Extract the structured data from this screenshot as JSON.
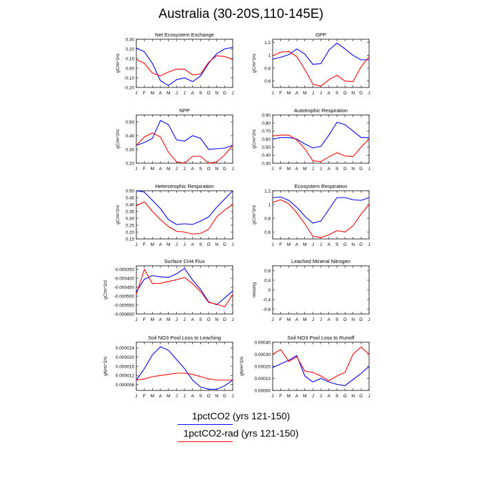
{
  "title": "Australia (30-20S,110-145E)",
  "legend": [
    {
      "label": "1pctCO2 (yrs 121-150)",
      "color": "#0000ff"
    },
    {
      "label": "1pctCO2-rad (yrs 121-150)",
      "color": "#ff0000"
    }
  ],
  "chart_data": [
    {
      "type": "line",
      "title": "Net Ecosystem Exchange",
      "ylabel": "gC/m^2/d",
      "categories": [
        "J",
        "F",
        "M",
        "A",
        "M",
        "J",
        "J",
        "A",
        "S",
        "O",
        "N",
        "D",
        "J"
      ],
      "ylim": [
        -0.2,
        0.3
      ],
      "yticks": [
        "0.30",
        "0.20",
        "0.10",
        "0.00",
        "-0.10",
        "-0.20"
      ],
      "grid": false,
      "series": [
        {
          "color": "#0000ff",
          "values": [
            0.21,
            0.17,
            0.05,
            -0.13,
            -0.18,
            -0.12,
            -0.1,
            -0.14,
            -0.08,
            0.05,
            0.15,
            0.2,
            0.215
          ]
        },
        {
          "color": "#ff0000",
          "values": [
            0.09,
            0.05,
            -0.05,
            -0.08,
            -0.04,
            -0.01,
            -0.01,
            -0.07,
            -0.06,
            0.06,
            0.13,
            0.12,
            0.09
          ]
        }
      ]
    },
    {
      "type": "line",
      "title": "GPP",
      "ylabel": "gC/m^2/d",
      "categories": [
        "J",
        "F",
        "M",
        "A",
        "M",
        "J",
        "J",
        "A",
        "S",
        "O",
        "N",
        "D",
        "J"
      ],
      "ylim": [
        0.5,
        1.25
      ],
      "yticks": [
        "1.2",
        "1",
        "0.8",
        "0.6"
      ],
      "grid": false,
      "series": [
        {
          "color": "#0000ff",
          "values": [
            0.94,
            0.97,
            1.01,
            1.1,
            1.02,
            0.86,
            0.87,
            1.08,
            1.19,
            1.1,
            1.0,
            0.93,
            0.93
          ]
        },
        {
          "color": "#ff0000",
          "values": [
            0.99,
            1.05,
            1.06,
            0.98,
            0.78,
            0.55,
            0.52,
            0.62,
            0.69,
            0.6,
            0.59,
            0.82,
            0.98
          ]
        }
      ]
    },
    {
      "type": "line",
      "title": "NPP",
      "ylabel": "gC/m^2/d",
      "categories": [
        "J",
        "F",
        "M",
        "A",
        "M",
        "J",
        "J",
        "A",
        "S",
        "O",
        "N",
        "D",
        "J"
      ],
      "ylim": [
        0.2,
        0.55
      ],
      "yticks": [
        "0.50",
        "0.40",
        "0.30",
        "0.20"
      ],
      "grid": false,
      "series": [
        {
          "color": "#0000ff",
          "values": [
            0.33,
            0.35,
            0.38,
            0.51,
            0.48,
            0.37,
            0.36,
            0.4,
            0.38,
            0.3,
            0.305,
            0.31,
            0.33
          ]
        },
        {
          "color": "#ff0000",
          "values": [
            0.33,
            0.39,
            0.42,
            0.39,
            0.28,
            0.21,
            0.2,
            0.25,
            0.25,
            0.2,
            0.21,
            0.26,
            0.33
          ]
        }
      ]
    },
    {
      "type": "line",
      "title": "Autotrophic Respiration",
      "ylabel": "gC/m^2/d",
      "categories": [
        "J",
        "F",
        "M",
        "A",
        "M",
        "J",
        "J",
        "A",
        "S",
        "O",
        "N",
        "D",
        "J"
      ],
      "ylim": [
        0.3,
        0.9
      ],
      "yticks": [
        "0.90",
        "0.80",
        "0.70",
        "0.60",
        "0.50",
        "0.40",
        "0.30"
      ],
      "grid": false,
      "series": [
        {
          "color": "#0000ff",
          "values": [
            0.6,
            0.62,
            0.62,
            0.6,
            0.54,
            0.49,
            0.51,
            0.65,
            0.81,
            0.78,
            0.7,
            0.62,
            0.62
          ]
        },
        {
          "color": "#ff0000",
          "values": [
            0.64,
            0.65,
            0.65,
            0.59,
            0.48,
            0.33,
            0.32,
            0.38,
            0.43,
            0.39,
            0.38,
            0.5,
            0.6
          ]
        }
      ]
    },
    {
      "type": "line",
      "title": "Heterotrophic Respiration",
      "ylabel": "gC/m^2/d",
      "categories": [
        "J",
        "F",
        "M",
        "A",
        "M",
        "J",
        "J",
        "A",
        "S",
        "O",
        "N",
        "D",
        "J"
      ],
      "ylim": [
        0.15,
        0.5
      ],
      "yticks": [
        "0.50",
        "0.45",
        "0.40",
        "0.35",
        "0.30",
        "0.25",
        "0.20",
        "0.15"
      ],
      "grid": false,
      "series": [
        {
          "color": "#0000ff",
          "values": [
            0.5,
            0.49,
            0.43,
            0.37,
            0.29,
            0.255,
            0.26,
            0.255,
            0.28,
            0.31,
            0.38,
            0.44,
            0.5
          ]
        },
        {
          "color": "#ff0000",
          "values": [
            0.39,
            0.42,
            0.35,
            0.29,
            0.24,
            0.205,
            0.2,
            0.185,
            0.19,
            0.22,
            0.31,
            0.36,
            0.4
          ]
        }
      ]
    },
    {
      "type": "line",
      "title": "Ecosystem Respiration",
      "ylabel": "gC/m^2/d",
      "categories": [
        "J",
        "F",
        "M",
        "A",
        "M",
        "J",
        "J",
        "A",
        "S",
        "O",
        "N",
        "D",
        "J"
      ],
      "ylim": [
        0.5,
        1.2
      ],
      "yticks": [
        "1.2",
        "1",
        "0.8",
        "0.6"
      ],
      "grid": false,
      "series": [
        {
          "color": "#0000ff",
          "values": [
            1.1,
            1.11,
            1.06,
            0.96,
            0.83,
            0.73,
            0.76,
            0.93,
            1.1,
            1.1,
            1.07,
            1.06,
            1.1
          ]
        },
        {
          "color": "#ff0000",
          "values": [
            1.03,
            1.07,
            1.01,
            0.88,
            0.72,
            0.54,
            0.52,
            0.56,
            0.62,
            0.6,
            0.69,
            0.86,
            1.0
          ]
        }
      ]
    },
    {
      "type": "line",
      "title": "Surface CH4 Flux",
      "ylabel": "gC/m^2/d",
      "categories": [
        "J",
        "F",
        "M",
        "A",
        "M",
        "J",
        "J",
        "A",
        "S",
        "O",
        "N",
        "D",
        "J"
      ],
      "ylim": [
        -0.0006,
        -0.00033
      ],
      "yticks": [
        "-0.000350",
        "-0.000400",
        "-0.000450",
        "-0.000500",
        "-0.000550",
        "-0.000600"
      ],
      "grid": false,
      "series": [
        {
          "color": "#0000ff",
          "values": [
            -0.000475,
            -0.000405,
            -0.000385,
            -0.000392,
            -0.000395,
            -0.000375,
            -0.000345,
            -0.00041,
            -0.000462,
            -0.000532,
            -0.000548,
            -0.00051,
            -0.00047
          ]
        },
        {
          "color": "#ff0000",
          "values": [
            -0.00049,
            -0.00035,
            -0.00043,
            -0.000428,
            -0.000418,
            -0.000408,
            -0.000395,
            -0.00043,
            -0.000475,
            -0.000535,
            -0.000545,
            -0.00056,
            -0.00049
          ]
        }
      ]
    },
    {
      "type": "line",
      "title": "Leached Mineral Nitrogen",
      "ylabel": "missing",
      "categories": [
        "J",
        "F",
        "M",
        "A",
        "M",
        "J",
        "J",
        "A",
        "S",
        "O",
        "N",
        "D",
        "J"
      ],
      "ylim": [
        -1.0,
        1.0
      ],
      "yticks": [
        "0.8",
        "0.4",
        "0",
        "-0.4",
        "-0.8"
      ],
      "grid": false,
      "series": []
    },
    {
      "type": "line",
      "title": "Soil NO3 Pool Loss to Leaching",
      "ylabel": "gN/m^2/d",
      "categories": [
        "J",
        "F",
        "M",
        "A",
        "M",
        "J",
        "J",
        "A",
        "S",
        "O",
        "N",
        "D",
        "J"
      ],
      "ylim": [
        5.5e-06,
        2.65e-05
      ],
      "yticks": [
        "0.000024",
        "0.000020",
        "0.000016",
        "0.000012",
        "0.000008"
      ],
      "grid": false,
      "series": [
        {
          "color": "#0000ff",
          "values": [
            1e-05,
            1.5e-05,
            2.1e-05,
            2.45e-05,
            2.3e-05,
            1.9e-05,
            1.5e-05,
            1e-05,
            7e-06,
            6e-06,
            6e-06,
            7.5e-06,
            1e-05
          ]
        },
        {
          "color": "#ff0000",
          "values": [
            1e-05,
            1.05e-05,
            1.15e-05,
            1.2e-05,
            1.25e-05,
            1.3e-05,
            1.3e-05,
            1.25e-05,
            1.15e-05,
            1.05e-05,
            1e-05,
            1e-05,
            1e-05
          ]
        }
      ]
    },
    {
      "type": "line",
      "title": "Soil NO3 Pool Loss to Runoff",
      "ylabel": "gN/m^2/d",
      "categories": [
        "J",
        "F",
        "M",
        "A",
        "M",
        "J",
        "J",
        "A",
        "S",
        "O",
        "N",
        "D",
        "J"
      ],
      "ylim": [
        0.0,
        0.0004
      ],
      "yticks": [
        "0.00040",
        "0.00030",
        "0.00020",
        "0.00010",
        "0.00000"
      ],
      "grid": false,
      "series": [
        {
          "color": "#0000ff",
          "values": [
            0.00019,
            0.00022,
            0.00025,
            0.00029,
            0.00012,
            7e-05,
            0.0001,
            7e-05,
            5e-05,
            4e-05,
            9e-05,
            0.00014,
            0.0002
          ]
        },
        {
          "color": "#ff0000",
          "values": [
            0.0003,
            0.00034,
            0.00024,
            0.00028,
            0.00016,
            0.00015,
            0.00012,
            8e-05,
            0.00012,
            0.00015,
            0.0003,
            0.00036,
            0.0003
          ]
        }
      ]
    }
  ]
}
